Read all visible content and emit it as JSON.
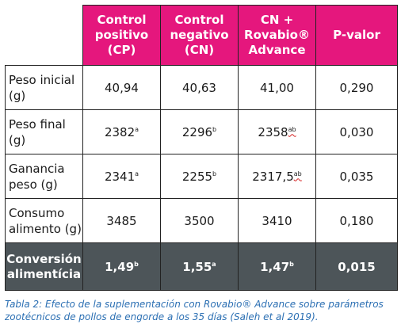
{
  "table": {
    "headers": [
      "",
      "Control positivo (CP)",
      "Control negativo (CN)",
      "CN + Rovabio® Advance",
      "P-valor"
    ],
    "header_lines": [
      [],
      [
        "Control",
        "positivo",
        "(CP)"
      ],
      [
        "Control",
        "negativo",
        "(CN)"
      ],
      [
        "CN +",
        "Rovabio®",
        "Advance"
      ],
      [
        "P-valor"
      ]
    ],
    "rows": [
      {
        "label": "Peso inicial (g)",
        "cells": [
          {
            "value": "40,94",
            "sup": ""
          },
          {
            "value": "40,63",
            "sup": ""
          },
          {
            "value": "41,00",
            "sup": ""
          },
          {
            "value": "0,290",
            "sup": ""
          }
        ]
      },
      {
        "label": "Peso final (g)",
        "cells": [
          {
            "value": "2382",
            "sup": "a"
          },
          {
            "value": "2296",
            "sup": "b"
          },
          {
            "value": "2358",
            "sup": "ab"
          },
          {
            "value": "0,030",
            "sup": ""
          }
        ]
      },
      {
        "label": "Ganancia peso (g)",
        "cells": [
          {
            "value": "2341",
            "sup": "a"
          },
          {
            "value": "2255",
            "sup": "b"
          },
          {
            "value": "2317,5",
            "sup": "ab"
          },
          {
            "value": "0,035",
            "sup": ""
          }
        ]
      },
      {
        "label": "Consumo alimento (g)",
        "cells": [
          {
            "value": "3485",
            "sup": ""
          },
          {
            "value": "3500",
            "sup": ""
          },
          {
            "value": "3410",
            "sup": ""
          },
          {
            "value": "0,180",
            "sup": ""
          }
        ]
      },
      {
        "label": "Conversión alimentícia",
        "cells": [
          {
            "value": "1,49",
            "sup": "b"
          },
          {
            "value": "1,55",
            "sup": "a"
          },
          {
            "value": "1,47",
            "sup": "b"
          },
          {
            "value": "0,015",
            "sup": ""
          }
        ]
      }
    ]
  },
  "caption": "Tabla 2: Efecto de la suplementación con Rovabio® Advance sobre parámetros zootécnicos de pollos de engorde a los 35 días (Saleh et al 2019).",
  "colors": {
    "header_bg": "#e5177d",
    "last_row_bg": "#4d5559",
    "caption_text": "#2b6fb3"
  }
}
